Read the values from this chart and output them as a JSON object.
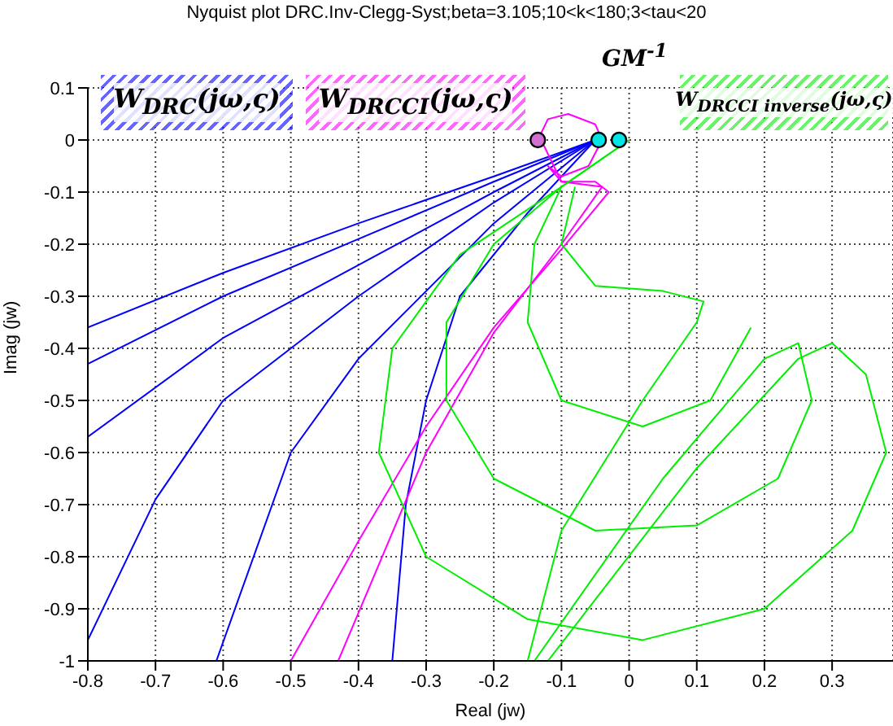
{
  "chart_data": {
    "type": "line",
    "title": "Nyquist plot DRC.Inv-Clegg-Syst;beta=3.105;10<k<180;3<tau<20",
    "xlabel": "Real (jw)",
    "ylabel": "Imag (jw)",
    "xlim": [
      -0.8,
      0.39
    ],
    "ylim": [
      -1,
      0.1
    ],
    "xticks": [
      -0.8,
      -0.7,
      -0.6,
      -0.5,
      -0.4,
      -0.3,
      -0.2,
      -0.1,
      0,
      0.1,
      0.2,
      0.3
    ],
    "yticks": [
      -1,
      -0.9,
      -0.8,
      -0.7,
      -0.6,
      -0.5,
      -0.4,
      -0.3,
      -0.2,
      -0.1,
      0,
      0.1
    ],
    "grid": true,
    "legend": "top",
    "marker": "none",
    "annotations": [
      "GM$^{-1}$"
    ],
    "series": [
      {
        "name": "W$_{DRC}$(jω,ς)",
        "color": "#0000ff",
        "x": [
          -0.05,
          -0.2,
          -0.4,
          -0.6,
          -0.8
        ],
        "values": [
          0,
          -0.07,
          -0.16,
          -0.255,
          -0.36
        ]
      },
      {
        "color": "#0000ff",
        "x": [
          -0.05,
          -0.2,
          -0.4,
          -0.6,
          -0.8
        ],
        "values": [
          0,
          -0.08,
          -0.19,
          -0.3,
          -0.43
        ]
      },
      {
        "color": "#0000ff",
        "x": [
          -0.05,
          -0.2,
          -0.4,
          -0.6,
          -0.8
        ],
        "values": [
          0,
          -0.1,
          -0.24,
          -0.38,
          -0.57
        ]
      },
      {
        "color": "#0000ff",
        "x": [
          -0.05,
          -0.2,
          -0.4,
          -0.6,
          -0.7,
          -0.8
        ],
        "values": [
          0,
          -0.12,
          -0.3,
          -0.5,
          -0.69,
          -0.96
        ]
      },
      {
        "color": "#0000ff",
        "x": [
          -0.05,
          -0.2,
          -0.4,
          -0.5,
          -0.61
        ],
        "values": [
          0,
          -0.16,
          -0.42,
          -0.6,
          -1
        ]
      },
      {
        "color": "#0000ff",
        "x": [
          -0.05,
          -0.15,
          -0.25,
          -0.3,
          -0.33,
          -0.35
        ],
        "values": [
          0,
          -0.14,
          -0.3,
          -0.5,
          -0.7,
          -1
        ]
      },
      {
        "name": "W$_{DRCCI}$(jω,ς)",
        "color": "#ff00ff",
        "x": [
          -0.135,
          -0.12,
          -0.09,
          -0.05,
          -0.04,
          -0.06,
          -0.1,
          -0.12,
          -0.1,
          -0.05,
          -0.03,
          -0.1,
          -0.2,
          -0.3,
          -0.4,
          -0.5
        ],
        "values": [
          0,
          0.04,
          0.05,
          0.03,
          0,
          -0.05,
          -0.07,
          -0.05,
          -0.08,
          -0.08,
          -0.1,
          -0.21,
          -0.36,
          -0.55,
          -0.77,
          -1
        ]
      },
      {
        "color": "#ff00ff",
        "x": [
          -0.13,
          -0.1,
          -0.04,
          -0.1,
          -0.2,
          -0.3,
          -0.43
        ],
        "values": [
          0,
          -0.08,
          -0.09,
          -0.2,
          -0.37,
          -0.6,
          -1
        ]
      },
      {
        "name": "W$_{DRCCI inverse}$(jω,ς)",
        "color": "#00ee00",
        "x": [
          0,
          -0.1,
          -0.25,
          -0.35,
          -0.37,
          -0.3,
          -0.15,
          0.02,
          0.2,
          0.33,
          0.38,
          0.35,
          0.3,
          0.25,
          0.1,
          -0.12
        ],
        "values": [
          0,
          -0.09,
          -0.22,
          -0.4,
          -0.6,
          -0.8,
          -0.92,
          -0.96,
          -0.9,
          -0.75,
          -0.6,
          -0.45,
          -0.39,
          -0.42,
          -0.63,
          -1
        ]
      },
      {
        "color": "#00ee00",
        "x": [
          0,
          -0.1,
          -0.2,
          -0.27,
          -0.27,
          -0.2,
          -0.05,
          0.1,
          0.22,
          0.27,
          0.25,
          0.2,
          0.05,
          -0.14
        ],
        "values": [
          0,
          -0.09,
          -0.2,
          -0.35,
          -0.5,
          -0.65,
          -0.75,
          -0.74,
          -0.65,
          -0.5,
          -0.39,
          -0.42,
          -0.65,
          -1
        ]
      },
      {
        "color": "#00ee00",
        "x": [
          -0.1,
          -0.14,
          -0.15,
          -0.1,
          0.02,
          0.12,
          0.18
        ],
        "values": [
          -0.09,
          -0.2,
          -0.35,
          -0.5,
          -0.55,
          -0.5,
          -0.36
        ]
      },
      {
        "color": "#00ee00",
        "x": [
          -0.08,
          -0.1,
          -0.05,
          0.05,
          0.11,
          0.1,
          0.02,
          -0.1,
          -0.15
        ],
        "values": [
          -0.09,
          -0.2,
          -0.28,
          -0.29,
          -0.31,
          -0.35,
          -0.5,
          -0.75,
          -1
        ]
      },
      {
        "type": "scatter",
        "marker": "circle",
        "colors": [
          "#d070d0",
          "#00e5e5",
          "#00e5e5"
        ],
        "x": [
          -0.135,
          -0.045,
          -0.015
        ],
        "values": [
          0,
          0,
          0
        ]
      }
    ]
  }
}
